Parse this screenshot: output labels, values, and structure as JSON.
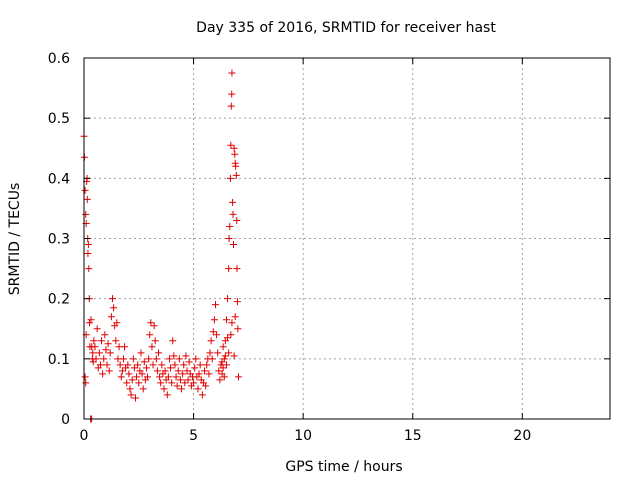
{
  "chart_data": {
    "type": "scatter",
    "title": "Day 335 of 2016, SRMTID for receiver hast",
    "xlabel": "GPS time / hours",
    "ylabel": "SRMTID / TECUs",
    "xlim": [
      0,
      24
    ],
    "ylim": [
      0,
      0.6
    ],
    "xticks": [
      0,
      5,
      10,
      15,
      20
    ],
    "xtick_labels": [
      "0",
      "5",
      "10",
      "15",
      "20"
    ],
    "yticks": [
      0,
      0.1,
      0.2,
      0.3,
      0.4,
      0.5,
      0.6
    ],
    "ytick_labels": [
      "0",
      "0.1",
      "0.2",
      "0.3",
      "0.4",
      "0.5",
      "0.6"
    ],
    "grid": true,
    "marker": "+",
    "colors": {
      "series": "#e00000",
      "grid": "#a0a0a0"
    },
    "series": [
      {
        "name": "SRMTID",
        "points": [
          [
            0.0,
            0.47
          ],
          [
            0.02,
            0.435
          ],
          [
            0.05,
            0.38
          ],
          [
            0.08,
            0.34
          ],
          [
            0.1,
            0.325
          ],
          [
            0.12,
            0.395
          ],
          [
            0.14,
            0.4
          ],
          [
            0.15,
            0.365
          ],
          [
            0.17,
            0.3
          ],
          [
            0.18,
            0.275
          ],
          [
            0.2,
            0.29
          ],
          [
            0.22,
            0.25
          ],
          [
            0.24,
            0.2
          ],
          [
            0.25,
            0.16
          ],
          [
            0.27,
            0.12
          ],
          [
            0.05,
            0.07
          ],
          [
            0.08,
            0.06
          ],
          [
            0.1,
            0.14
          ],
          [
            0.3,
            0.0
          ],
          [
            0.35,
            0.0
          ],
          [
            0.32,
            0.165
          ],
          [
            0.35,
            0.12
          ],
          [
            0.38,
            0.1
          ],
          [
            0.4,
            0.11
          ],
          [
            0.42,
            0.095
          ],
          [
            0.45,
            0.13
          ],
          [
            0.5,
            0.12
          ],
          [
            0.55,
            0.1
          ],
          [
            0.6,
            0.15
          ],
          [
            0.65,
            0.085
          ],
          [
            0.7,
            0.11
          ],
          [
            0.75,
            0.09
          ],
          [
            0.8,
            0.13
          ],
          [
            0.85,
            0.075
          ],
          [
            0.9,
            0.1
          ],
          [
            0.95,
            0.14
          ],
          [
            1.0,
            0.115
          ],
          [
            1.05,
            0.09
          ],
          [
            1.1,
            0.125
          ],
          [
            1.15,
            0.08
          ],
          [
            1.2,
            0.11
          ],
          [
            1.25,
            0.17
          ],
          [
            1.3,
            0.2
          ],
          [
            1.35,
            0.185
          ],
          [
            1.4,
            0.155
          ],
          [
            1.45,
            0.13
          ],
          [
            1.5,
            0.16
          ],
          [
            1.55,
            0.1
          ],
          [
            1.6,
            0.12
          ],
          [
            1.65,
            0.09
          ],
          [
            1.7,
            0.07
          ],
          [
            1.75,
            0.08
          ],
          [
            1.8,
            0.1
          ],
          [
            1.85,
            0.12
          ],
          [
            1.9,
            0.085
          ],
          [
            1.95,
            0.06
          ],
          [
            2.0,
            0.09
          ],
          [
            2.05,
            0.075
          ],
          [
            2.1,
            0.05
          ],
          [
            2.15,
            0.04
          ],
          [
            2.2,
            0.065
          ],
          [
            2.25,
            0.1
          ],
          [
            2.3,
            0.085
          ],
          [
            2.35,
            0.035
          ],
          [
            2.4,
            0.07
          ],
          [
            2.45,
            0.09
          ],
          [
            2.5,
            0.06
          ],
          [
            2.55,
            0.08
          ],
          [
            2.6,
            0.11
          ],
          [
            2.65,
            0.075
          ],
          [
            2.7,
            0.05
          ],
          [
            2.75,
            0.095
          ],
          [
            2.8,
            0.065
          ],
          [
            2.85,
            0.085
          ],
          [
            2.9,
            0.07
          ],
          [
            2.95,
            0.1
          ],
          [
            3.0,
            0.14
          ],
          [
            3.05,
            0.16
          ],
          [
            3.1,
            0.12
          ],
          [
            3.15,
            0.09
          ],
          [
            3.2,
            0.155
          ],
          [
            3.25,
            0.13
          ],
          [
            3.3,
            0.1
          ],
          [
            3.35,
            0.08
          ],
          [
            3.4,
            0.11
          ],
          [
            3.45,
            0.07
          ],
          [
            3.5,
            0.06
          ],
          [
            3.55,
            0.09
          ],
          [
            3.6,
            0.075
          ],
          [
            3.65,
            0.05
          ],
          [
            3.7,
            0.08
          ],
          [
            3.75,
            0.065
          ],
          [
            3.8,
            0.04
          ],
          [
            3.85,
            0.07
          ],
          [
            3.9,
            0.1
          ],
          [
            3.95,
            0.085
          ],
          [
            4.0,
            0.06
          ],
          [
            4.05,
            0.13
          ],
          [
            4.1,
            0.105
          ],
          [
            4.15,
            0.09
          ],
          [
            4.2,
            0.07
          ],
          [
            4.25,
            0.055
          ],
          [
            4.3,
            0.08
          ],
          [
            4.35,
            0.1
          ],
          [
            4.4,
            0.065
          ],
          [
            4.45,
            0.05
          ],
          [
            4.5,
            0.075
          ],
          [
            4.55,
            0.09
          ],
          [
            4.6,
            0.06
          ],
          [
            4.65,
            0.105
          ],
          [
            4.7,
            0.08
          ],
          [
            4.75,
            0.065
          ],
          [
            4.8,
            0.095
          ],
          [
            4.85,
            0.075
          ],
          [
            4.9,
            0.055
          ],
          [
            4.95,
            0.07
          ],
          [
            5.0,
            0.06
          ],
          [
            5.05,
            0.085
          ],
          [
            5.1,
            0.1
          ],
          [
            5.15,
            0.07
          ],
          [
            5.2,
            0.05
          ],
          [
            5.25,
            0.075
          ],
          [
            5.3,
            0.09
          ],
          [
            5.35,
            0.065
          ],
          [
            5.4,
            0.04
          ],
          [
            5.45,
            0.06
          ],
          [
            5.5,
            0.08
          ],
          [
            5.55,
            0.055
          ],
          [
            5.6,
            0.09
          ],
          [
            5.65,
            0.1
          ],
          [
            5.7,
            0.075
          ],
          [
            5.75,
            0.11
          ],
          [
            5.8,
            0.13
          ],
          [
            5.85,
            0.1
          ],
          [
            5.9,
            0.145
          ],
          [
            5.95,
            0.165
          ],
          [
            6.0,
            0.19
          ],
          [
            6.05,
            0.14
          ],
          [
            6.1,
            0.11
          ],
          [
            6.15,
            0.08
          ],
          [
            6.2,
            0.065
          ],
          [
            6.25,
            0.09
          ],
          [
            6.3,
            0.075
          ],
          [
            6.35,
            0.085
          ],
          [
            6.4,
            0.1
          ],
          [
            6.45,
            0.13
          ],
          [
            6.5,
            0.165
          ],
          [
            6.55,
            0.2
          ],
          [
            6.6,
            0.25
          ],
          [
            6.62,
            0.3
          ],
          [
            6.65,
            0.32
          ],
          [
            6.68,
            0.4
          ],
          [
            6.7,
            0.455
          ],
          [
            6.72,
            0.52
          ],
          [
            6.74,
            0.54
          ],
          [
            6.75,
            0.575
          ],
          [
            6.78,
            0.36
          ],
          [
            6.8,
            0.34
          ],
          [
            6.82,
            0.29
          ],
          [
            6.85,
            0.45
          ],
          [
            6.88,
            0.44
          ],
          [
            6.9,
            0.425
          ],
          [
            6.92,
            0.42
          ],
          [
            6.95,
            0.405
          ],
          [
            6.97,
            0.33
          ],
          [
            6.98,
            0.25
          ],
          [
            7.0,
            0.195
          ],
          [
            7.02,
            0.15
          ],
          [
            7.05,
            0.07
          ],
          [
            6.9,
            0.17
          ],
          [
            6.7,
            0.14
          ],
          [
            6.6,
            0.11
          ],
          [
            6.5,
            0.09
          ],
          [
            6.4,
            0.07
          ],
          [
            6.3,
            0.095
          ],
          [
            6.35,
            0.12
          ],
          [
            6.45,
            0.105
          ],
          [
            6.55,
            0.135
          ],
          [
            6.75,
            0.16
          ],
          [
            6.85,
            0.105
          ]
        ]
      }
    ]
  }
}
